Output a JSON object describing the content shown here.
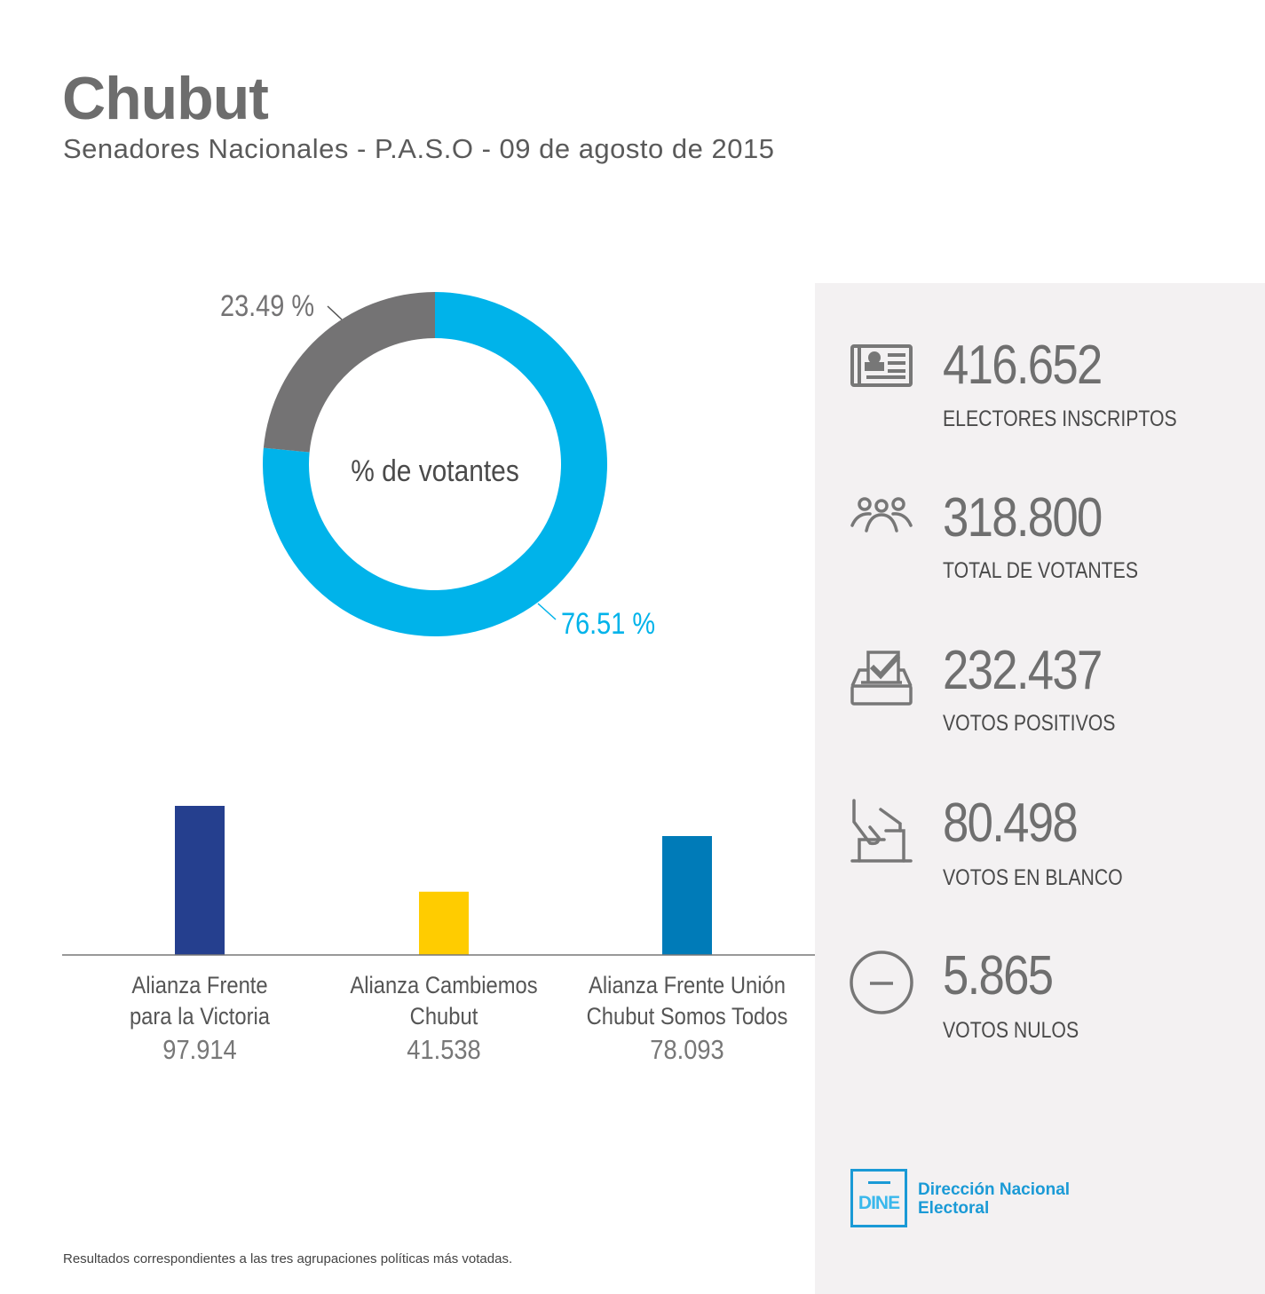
{
  "header": {
    "title": "Chubut",
    "subtitle": "Senadores Nacionales - P.A.S.O - 09 de agosto de 2015"
  },
  "chart_data": [
    {
      "type": "pie",
      "title": "% de votantes",
      "slices": [
        {
          "label": "76.51 %",
          "value": 76.51,
          "color": "#00b3ea"
        },
        {
          "label": "23.49 %",
          "value": 23.49,
          "color": "#747374"
        }
      ]
    },
    {
      "type": "bar",
      "categories": [
        "Alianza Frente para la Victoria",
        "Alianza Cambiemos Chubut",
        "Alianza Frente Unión Chubut Somos Todos"
      ],
      "category_lines": [
        [
          "Alianza Frente",
          "para la Victoria"
        ],
        [
          "Alianza Cambiemos",
          "Chubut"
        ],
        [
          "Alianza Frente Unión",
          "Chubut Somos Todos"
        ]
      ],
      "values": [
        97914,
        41538,
        78093
      ],
      "value_labels": [
        "97.914",
        "41.538",
        "78.093"
      ],
      "colors": [
        "#253f8e",
        "#ffcc00",
        "#007bb8"
      ],
      "ylim": [
        0,
        97914
      ]
    }
  ],
  "stats": [
    {
      "icon": "voter-id-card-icon",
      "value": "416.652",
      "label": "ELECTORES INSCRIPTOS"
    },
    {
      "icon": "people-group-icon",
      "value": "318.800",
      "label": "TOTAL DE VOTANTES"
    },
    {
      "icon": "ballot-box-check-icon",
      "value": "232.437",
      "label": "VOTOS POSITIVOS"
    },
    {
      "icon": "hand-ballot-icon",
      "value": "80.498",
      "label": "VOTOS EN BLANCO"
    },
    {
      "icon": "minus-circle-icon",
      "value": "5.865",
      "label": "VOTOS NULOS"
    }
  ],
  "logo": {
    "mark": "DINE",
    "line1": "Dirección Nacional",
    "line2": "Electoral",
    "color": "#1a9ad6"
  },
  "footnote": "Resultados correspondientes a las tres agrupaciones políticas más votadas."
}
